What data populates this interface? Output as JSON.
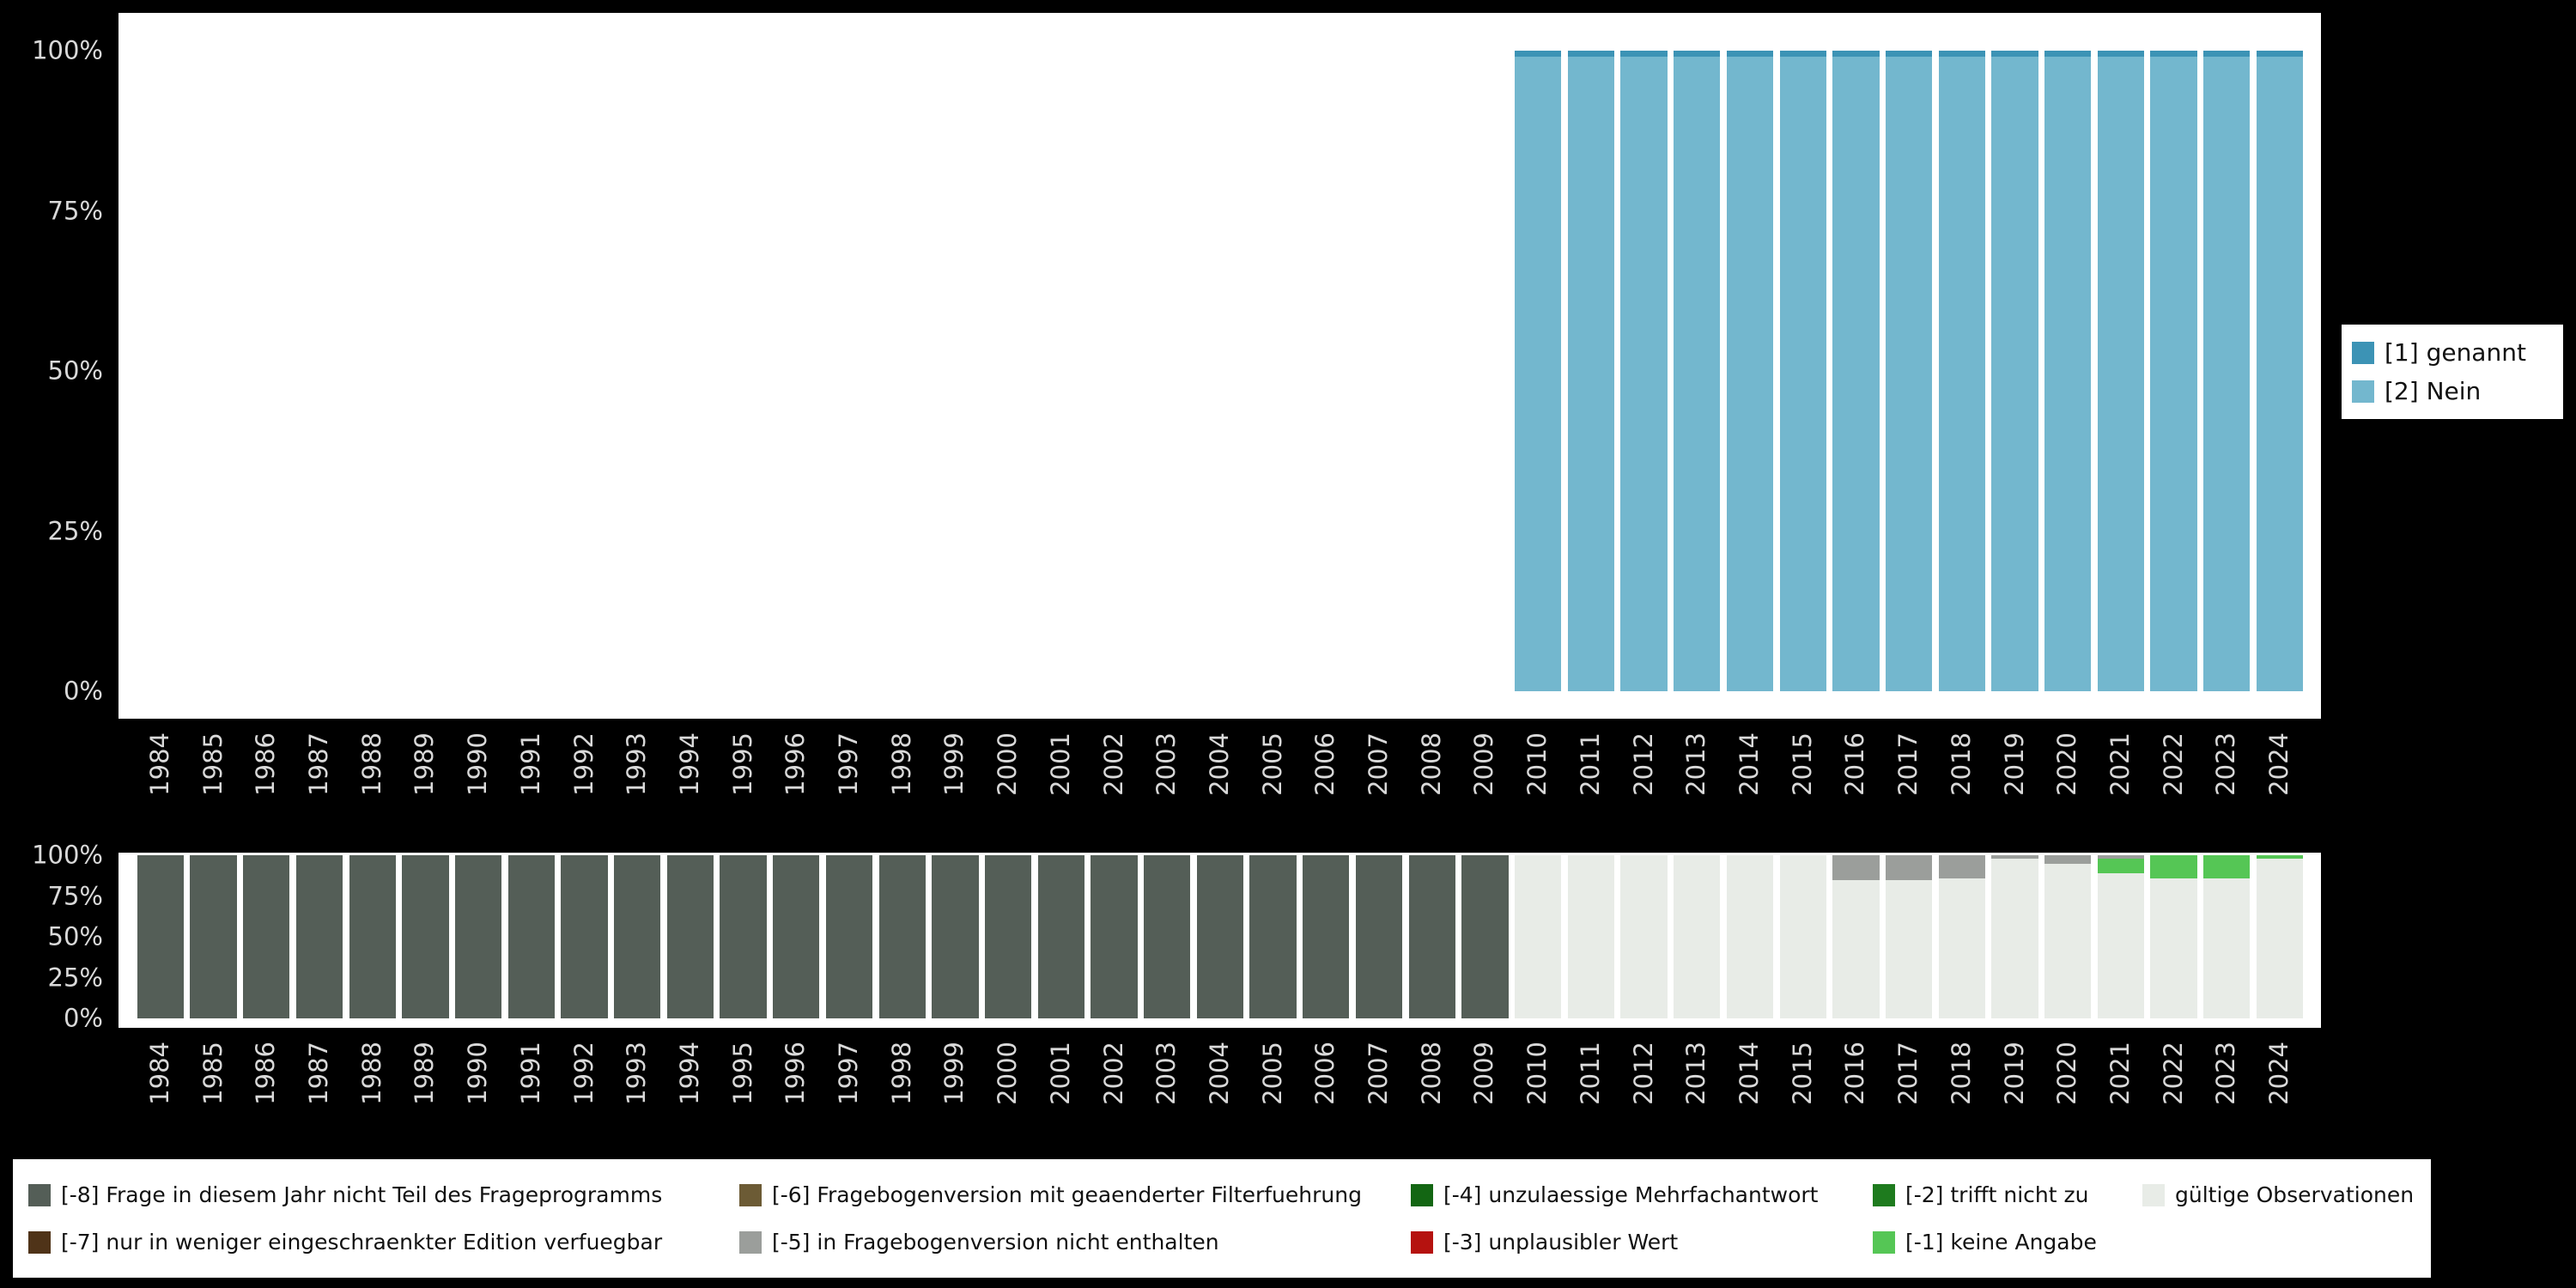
{
  "page": {
    "background": "#000000",
    "panel_background": "#ffffff",
    "axis_text_color": "#d9d9d9"
  },
  "chart_data": [
    {
      "id": "answer-frequencies",
      "type": "bar",
      "stacked": true,
      "grid": false,
      "legend_position": "right",
      "ylim": [
        0,
        100
      ],
      "yticks": [
        "100%",
        "75%",
        "50%",
        "25%",
        "0%"
      ],
      "categories": [
        "1984",
        "1985",
        "1986",
        "1987",
        "1988",
        "1989",
        "1990",
        "1991",
        "1992",
        "1993",
        "1994",
        "1995",
        "1996",
        "1997",
        "1998",
        "1999",
        "2000",
        "2001",
        "2002",
        "2003",
        "2004",
        "2005",
        "2006",
        "2007",
        "2008",
        "2009",
        "2010",
        "2011",
        "2012",
        "2013",
        "2014",
        "2015",
        "2016",
        "2017",
        "2018",
        "2019",
        "2020",
        "2021",
        "2022",
        "2023",
        "2024"
      ],
      "series": [
        {
          "name": "[1] genannt",
          "color": "#3c93b5",
          "values": [
            0,
            0,
            0,
            0,
            0,
            0,
            0,
            0,
            0,
            0,
            0,
            0,
            0,
            0,
            0,
            0,
            0,
            0,
            0,
            0,
            0,
            0,
            0,
            0,
            0,
            0,
            1,
            1,
            1,
            1,
            1,
            1,
            1,
            1,
            1,
            1,
            1,
            1,
            1,
            1,
            1
          ]
        },
        {
          "name": "[2] Nein",
          "color": "#73b7ce",
          "values": [
            0,
            0,
            0,
            0,
            0,
            0,
            0,
            0,
            0,
            0,
            0,
            0,
            0,
            0,
            0,
            0,
            0,
            0,
            0,
            0,
            0,
            0,
            0,
            0,
            0,
            0,
            99,
            99,
            99,
            99,
            99,
            99,
            99,
            99,
            99,
            99,
            99,
            99,
            99,
            99,
            99
          ]
        }
      ]
    },
    {
      "id": "missing-values",
      "type": "bar",
      "stacked": true,
      "grid": false,
      "legend_position": "bottom",
      "ylim": [
        0,
        100
      ],
      "yticks": [
        "100%",
        "75%",
        "50%",
        "25%",
        "0%"
      ],
      "categories": [
        "1984",
        "1985",
        "1986",
        "1987",
        "1988",
        "1989",
        "1990",
        "1991",
        "1992",
        "1993",
        "1994",
        "1995",
        "1996",
        "1997",
        "1998",
        "1999",
        "2000",
        "2001",
        "2002",
        "2003",
        "2004",
        "2005",
        "2006",
        "2007",
        "2008",
        "2009",
        "2010",
        "2011",
        "2012",
        "2013",
        "2014",
        "2015",
        "2016",
        "2017",
        "2018",
        "2019",
        "2020",
        "2021",
        "2022",
        "2023",
        "2024"
      ],
      "series": [
        {
          "name": "[-8] Frage in diesem Jahr nicht Teil des Frageprogramms",
          "color": "#545e57",
          "values": [
            100,
            100,
            100,
            100,
            100,
            100,
            100,
            100,
            100,
            100,
            100,
            100,
            100,
            100,
            100,
            100,
            100,
            100,
            100,
            100,
            100,
            100,
            100,
            100,
            100,
            100,
            0,
            0,
            0,
            0,
            0,
            0,
            0,
            0,
            0,
            0,
            0,
            0,
            0,
            0,
            0
          ]
        },
        {
          "name": "[-5] in Fragebogenversion nicht enthalten",
          "color": "#9b9e9b",
          "values": [
            0,
            0,
            0,
            0,
            0,
            0,
            0,
            0,
            0,
            0,
            0,
            0,
            0,
            0,
            0,
            0,
            0,
            0,
            0,
            0,
            0,
            0,
            0,
            0,
            0,
            0,
            0,
            0,
            0,
            0,
            0,
            0,
            15,
            15,
            14,
            2,
            5,
            2,
            0,
            0,
            0
          ]
        },
        {
          "name": "[-1] keine Angabe",
          "color": "#55c655",
          "values": [
            0,
            0,
            0,
            0,
            0,
            0,
            0,
            0,
            0,
            0,
            0,
            0,
            0,
            0,
            0,
            0,
            0,
            0,
            0,
            0,
            0,
            0,
            0,
            0,
            0,
            0,
            0,
            0,
            0,
            0,
            0,
            0,
            0,
            0,
            0,
            0,
            0,
            9,
            14,
            14,
            2
          ]
        },
        {
          "name": "gültige Observationen",
          "color": "#e8ece7",
          "values": [
            0,
            0,
            0,
            0,
            0,
            0,
            0,
            0,
            0,
            0,
            0,
            0,
            0,
            0,
            0,
            0,
            0,
            0,
            0,
            0,
            0,
            0,
            0,
            0,
            0,
            0,
            100,
            100,
            100,
            100,
            100,
            100,
            85,
            85,
            86,
            98,
            95,
            89,
            86,
            86,
            98
          ]
        }
      ]
    }
  ],
  "top_legend": {
    "items": [
      {
        "label": "[1] genannt",
        "color": "#3c93b5"
      },
      {
        "label": "[2] Nein",
        "color": "#73b7ce"
      }
    ]
  },
  "bottom_legend": {
    "items": [
      {
        "label": "[-8] Frage in diesem Jahr nicht Teil des Frageprogramms",
        "color": "#545e57"
      },
      {
        "label": "[-7] nur in weniger eingeschraenkter Edition verfuegbar",
        "color": "#4f3318"
      },
      {
        "label": "[-6] Fragebogenversion mit geaenderter Filterfuehrung",
        "color": "#6c5b35"
      },
      {
        "label": "[-5] in Fragebogenversion nicht enthalten",
        "color": "#9b9e9b"
      },
      {
        "label": "[-4] unzulaessige Mehrfachantwort",
        "color": "#136613"
      },
      {
        "label": "[-3] unplausibler Wert",
        "color": "#b5120f"
      },
      {
        "label": "[-2] trifft nicht zu",
        "color": "#1e7b1e"
      },
      {
        "label": "[-1] keine Angabe",
        "color": "#55c655"
      },
      {
        "label": "gültige Observationen",
        "color": "#e8ece7"
      }
    ]
  }
}
